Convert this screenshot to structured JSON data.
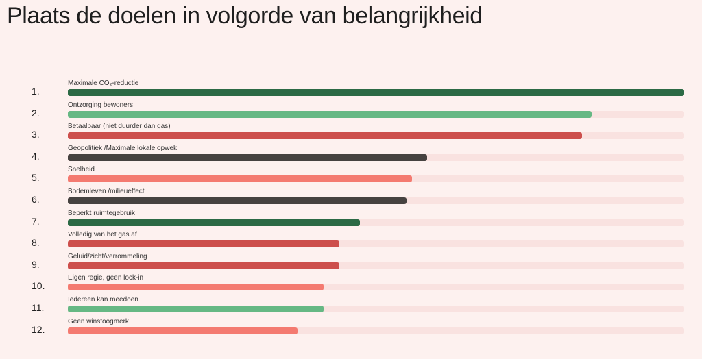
{
  "chart_data": {
    "type": "bar",
    "orientation": "horizontal",
    "title": "Plaats de doelen in volgorde van belangrijkheid",
    "xlim": [
      0,
      100
    ],
    "grid": false,
    "items": [
      {
        "rank": "1.",
        "label": "Maximale CO₂-reductie",
        "value": 100,
        "color": "#2c6a45"
      },
      {
        "rank": "2.",
        "label": "Ontzorging bewoners",
        "value": 85,
        "color": "#66b884"
      },
      {
        "rank": "3.",
        "label": "Betaalbaar (niet duurder dan gas)",
        "value": 83.4,
        "color": "#cd4f4c"
      },
      {
        "rank": "4.",
        "label": "Geopolitiek /Maximale lokale opwek",
        "value": 58.3,
        "color": "#464240"
      },
      {
        "rank": "5.",
        "label": "Snelheid",
        "value": 55.8,
        "color": "#f47a70"
      },
      {
        "rank": "6.",
        "label": "Bodemleven /milieueffect",
        "value": 55,
        "color": "#464240"
      },
      {
        "rank": "7.",
        "label": "Beperkt ruimtegebruik",
        "value": 47.4,
        "color": "#2c6a45"
      },
      {
        "rank": "8.",
        "label": "Volledig van het gas af",
        "value": 44,
        "color": "#cd4f4c"
      },
      {
        "rank": "9.",
        "label": "Geluid/zicht/verrommeling",
        "value": 44,
        "color": "#cd4f4c"
      },
      {
        "rank": "10.",
        "label": "Eigen regie, geen lock-in",
        "value": 41.5,
        "color": "#f47a70"
      },
      {
        "rank": "11.",
        "label": "Iedereen kan meedoen",
        "value": 41.5,
        "color": "#66b884"
      },
      {
        "rank": "12.",
        "label": "Geen winstoogmerk",
        "value": 37.3,
        "color": "#f47a70"
      }
    ]
  }
}
